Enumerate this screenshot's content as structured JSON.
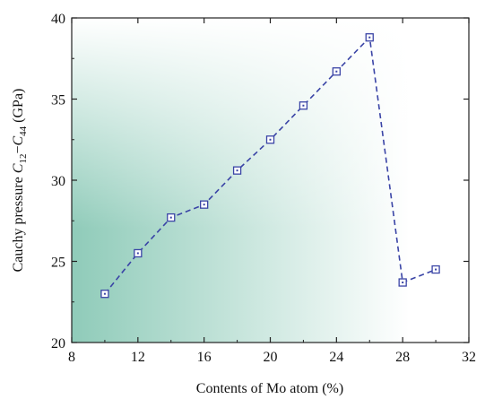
{
  "chart_data": {
    "type": "line",
    "title": "",
    "xlabel": "Contents of Mo atom (%)",
    "ylabel": {
      "prefix": "Cauchy pressure ",
      "c12_var": "C",
      "c12_sub": "12",
      "dash": "−",
      "c44_var": "C",
      "c44_sub": "44",
      "suffix": " (GPa)"
    },
    "xlim": [
      8,
      32
    ],
    "ylim": [
      20,
      40
    ],
    "xticks": [
      8,
      12,
      16,
      20,
      24,
      28,
      32
    ],
    "yticks": [
      20,
      25,
      30,
      35,
      40
    ],
    "grid": false,
    "series": [
      {
        "x": [
          10,
          12,
          14,
          16,
          18,
          20,
          22,
          24,
          26,
          28,
          30
        ],
        "values": [
          23.0,
          25.5,
          27.7,
          28.5,
          30.6,
          32.5,
          34.6,
          36.7,
          38.8,
          23.7,
          24.5
        ]
      }
    ],
    "colors": {
      "line": "#3a44a6",
      "marker": "#3a44a6",
      "gradient_start": "#8fcbb9",
      "gradient_end": "#ffffff"
    }
  }
}
